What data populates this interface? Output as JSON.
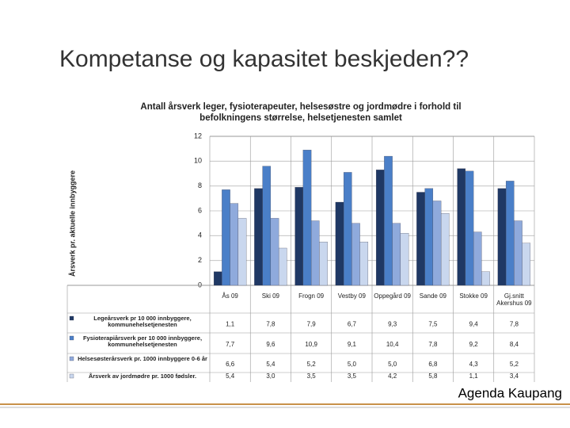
{
  "title": "Kompetanse og kapasitet beskjeden??",
  "footer": "Agenda Kaupang",
  "chart_data": {
    "type": "bar",
    "title": "Antall årsverk leger, fysioterapeuter, helsesøstre og jordmødre i forhold til befolkningens størrelse, helsetjenesten samlet",
    "y_label": "Årsverk pr. aktuelle innbyggere",
    "categories": [
      "Ås 09",
      "Ski 09",
      "Frogn 09",
      "Vestby 09",
      "Oppegård 09",
      "Sande 09",
      "Stokke 09",
      "Gj.snitt Akershus 09"
    ],
    "series": [
      {
        "name": "Legeårsverk pr 10 000 innbyggere, kommunehelsetjenesten",
        "color": "#1f3864",
        "values": [
          1.1,
          7.8,
          7.9,
          6.7,
          9.3,
          7.5,
          9.4,
          7.8
        ],
        "value_labels": [
          "1,1",
          "7,8",
          "7,9",
          "6,7",
          "9,3",
          "7,5",
          "9,4",
          "7,8"
        ]
      },
      {
        "name": "Fysioterapiårsverk per 10 000 innbyggere, kommunehelsetjenesten",
        "color": "#4a7fc8",
        "values": [
          7.7,
          9.6,
          10.9,
          9.1,
          10.4,
          7.8,
          9.2,
          8.4
        ],
        "value_labels": [
          "7,7",
          "9,6",
          "10,9",
          "9,1",
          "10,4",
          "7,8",
          "9,2",
          "8,4"
        ]
      },
      {
        "name": "Helsesøsterårsverk pr. 1000 innbyggere 0-6 år",
        "color": "#8faadc",
        "values": [
          6.6,
          5.4,
          5.2,
          5.0,
          5.0,
          6.8,
          4.3,
          5.2
        ],
        "value_labels": [
          "6,6",
          "5,4",
          "5,2",
          "5,0",
          "5,0",
          "6,8",
          "4,3",
          "5,2"
        ]
      },
      {
        "name": "Årsverk av jordmødre pr. 1000 fødsler.",
        "color": "#c9d7ee",
        "values": [
          5.4,
          3.0,
          3.5,
          3.5,
          4.2,
          5.8,
          1.1,
          3.4
        ],
        "value_labels": [
          "5,4",
          "3,0",
          "3,5",
          "3,5",
          "4,2",
          "5,8",
          "1,1",
          "3,4"
        ]
      }
    ],
    "ylim": [
      0,
      12
    ],
    "yticks": [
      0,
      2,
      4,
      6,
      8,
      10,
      12
    ],
    "grid": true
  }
}
